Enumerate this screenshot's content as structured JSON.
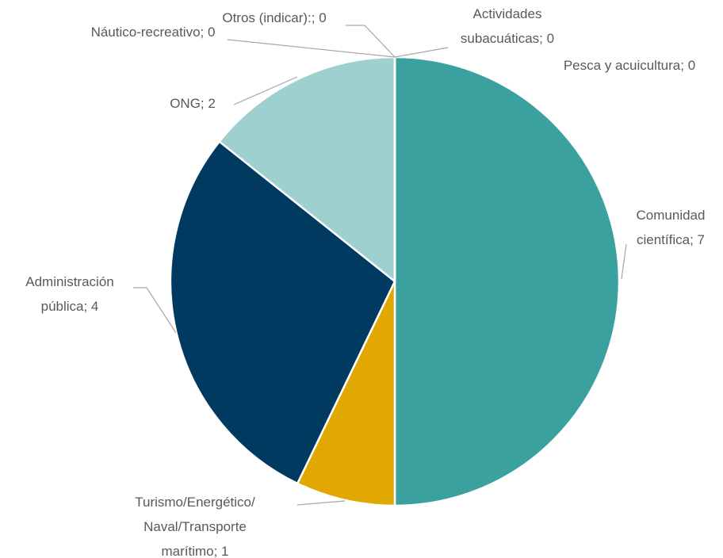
{
  "chart_data": {
    "type": "pie",
    "values": [
      7,
      1,
      4,
      2,
      0,
      0,
      0,
      0
    ],
    "value_labels": [
      "Comunidad científica; 7",
      "Turismo/Energético/Naval/Transporte marítimo; 1",
      "Administración pública; 4",
      "ONG; 2",
      "Náutico-recreativo; 0",
      "Otros (indicar):; 0",
      "Actividades subacuáticas; 0",
      "Pesca y acuicultura; 0"
    ],
    "colors": [
      "#3aa19f",
      "#e0a800",
      "#003a60",
      "#9dd0ce",
      "#5b9bd5",
      "#a5a5a5",
      "#70ad47",
      "#ffc000"
    ]
  }
}
